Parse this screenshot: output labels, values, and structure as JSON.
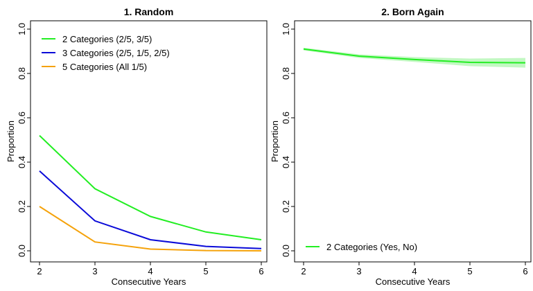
{
  "chart_data": [
    {
      "type": "line",
      "title": "1. Random",
      "xlabel": "Consecutive Years",
      "ylabel": "Proportion",
      "x": [
        2,
        3,
        4,
        5,
        6
      ],
      "xlim": [
        2,
        6
      ],
      "ylim": [
        0,
        1
      ],
      "xticks": [
        "2",
        "3",
        "4",
        "5",
        "6"
      ],
      "yticks": [
        "0.0",
        "0.2",
        "0.4",
        "0.6",
        "0.8",
        "1.0"
      ],
      "legend_position": "top-left",
      "series": [
        {
          "name": "2 Categories (2/5, 3/5)",
          "color": "#22ee22",
          "values": [
            0.52,
            0.28,
            0.155,
            0.085,
            0.05
          ]
        },
        {
          "name": "3 Categories (2/5, 1/5, 2/5)",
          "color": "#0a0ad8",
          "values": [
            0.36,
            0.135,
            0.05,
            0.02,
            0.01
          ]
        },
        {
          "name": "5 Categories (All 1/5)",
          "color": "#f5a20a",
          "values": [
            0.2,
            0.04,
            0.008,
            0.001,
            0.0
          ]
        }
      ]
    },
    {
      "type": "line",
      "title": "2. Born Again",
      "xlabel": "Consecutive Years",
      "ylabel": "Proportion",
      "x": [
        2,
        3,
        4,
        5,
        6
      ],
      "xlim": [
        2,
        6
      ],
      "ylim": [
        0,
        1
      ],
      "xticks": [
        "2",
        "3",
        "4",
        "5",
        "6"
      ],
      "yticks": [
        "0.0",
        "0.2",
        "0.4",
        "0.6",
        "0.8",
        "1.0"
      ],
      "legend_position": "bottom-left",
      "series": [
        {
          "name": "2 Categories (Yes, No)",
          "color": "#22ee22",
          "band_color": "#a8f5a8",
          "values": [
            0.91,
            0.878,
            0.863,
            0.85,
            0.848
          ],
          "band_lower": [
            0.904,
            0.87,
            0.852,
            0.833,
            0.826
          ],
          "band_upper": [
            0.916,
            0.886,
            0.874,
            0.867,
            0.87
          ]
        }
      ]
    }
  ]
}
